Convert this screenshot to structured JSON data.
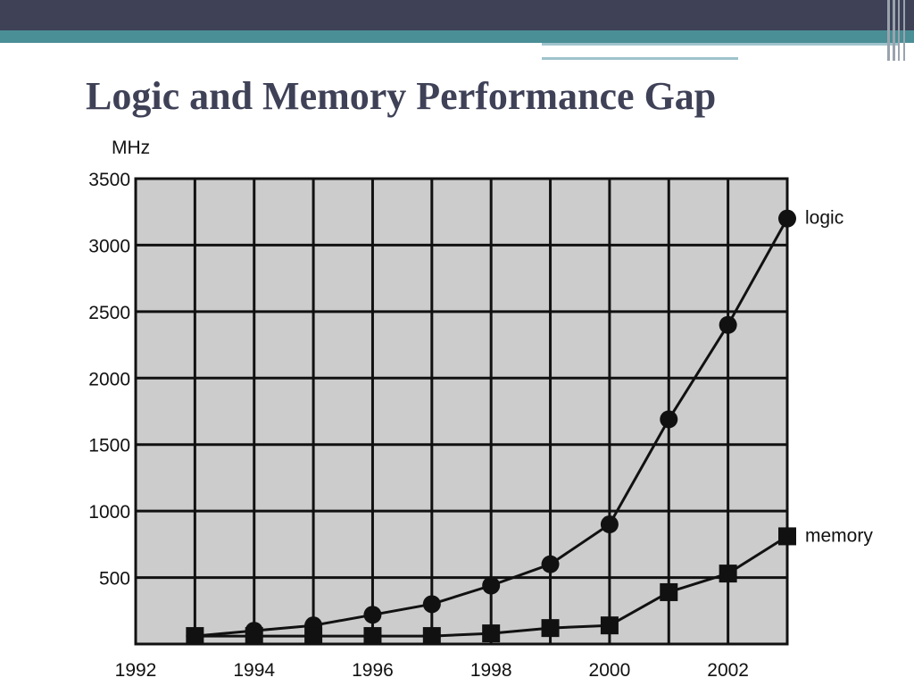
{
  "slide": {
    "title": "Logic and Memory Performance Gap"
  },
  "theme": {
    "header_dark": "#3f4157",
    "header_teal": "#4a8e96",
    "title_color": "#3f4157",
    "plot_bg": "#cccccc",
    "ink": "#111111"
  },
  "chart_data": {
    "type": "line",
    "title": "",
    "xlabel": "",
    "ylabel": "MHz",
    "xlim": [
      1992,
      2003
    ],
    "ylim": [
      0,
      3500
    ],
    "x_ticks": [
      1992,
      1994,
      1996,
      1998,
      2000,
      2002
    ],
    "y_ticks": [
      500,
      1000,
      1500,
      2000,
      2500,
      3000,
      3500
    ],
    "grid": true,
    "legend": "direct labels at line ends (right)",
    "series": [
      {
        "name": "logic",
        "marker": "circle",
        "x": [
          1993,
          1994,
          1995,
          1996,
          1997,
          1998,
          1999,
          2000,
          2001,
          2002,
          2003
        ],
        "values": [
          60,
          100,
          140,
          220,
          300,
          440,
          600,
          900,
          1690,
          2400,
          3200
        ]
      },
      {
        "name": "memory",
        "marker": "square",
        "x": [
          1993,
          1994,
          1995,
          1996,
          1997,
          1998,
          1999,
          2000,
          2001,
          2002,
          2003
        ],
        "values": [
          60,
          60,
          60,
          60,
          60,
          80,
          120,
          140,
          390,
          530,
          810
        ]
      }
    ]
  }
}
